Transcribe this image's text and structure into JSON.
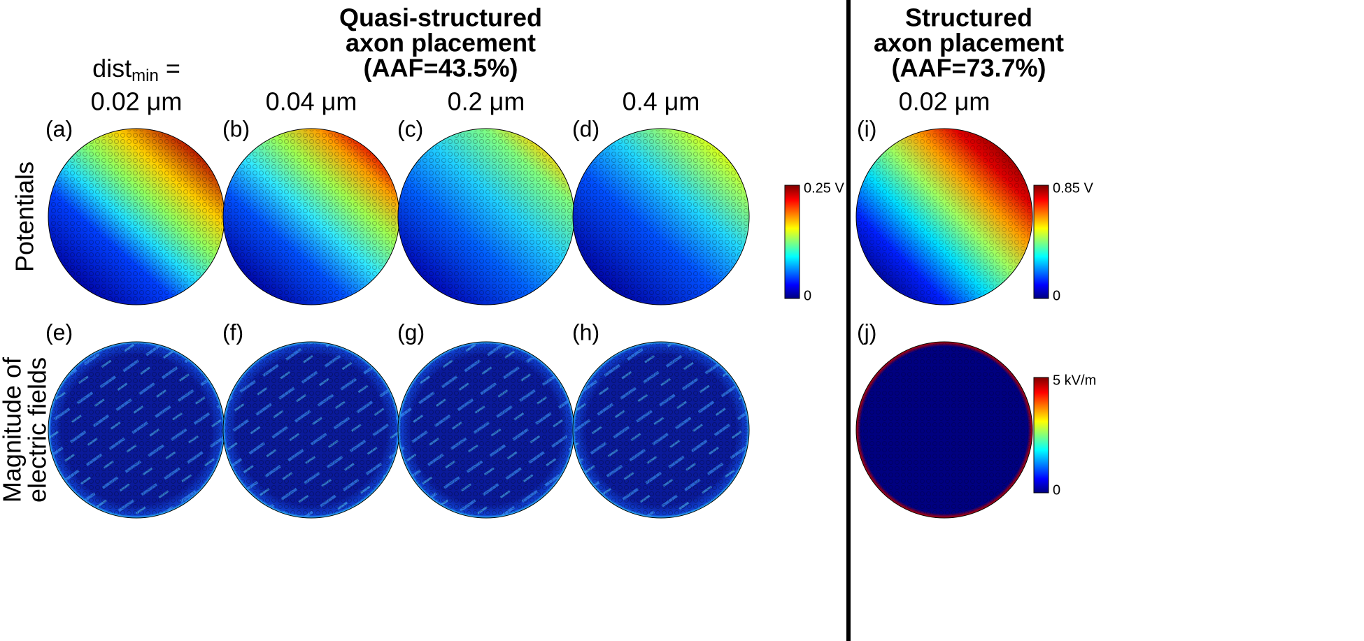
{
  "quasi_title": [
    "Quasi-structured",
    "axon placement",
    "(AAF=43.5%)"
  ],
  "structured_title": [
    "Structured",
    "axon placement",
    "(AAF=73.7%)"
  ],
  "dist_label": {
    "name": "dist",
    "sub": "min",
    "eq": " ="
  },
  "columns": [
    "0.02 μm",
    "0.04 μm",
    "0.2 μm",
    "0.4 μm",
    "0.02 μm"
  ],
  "panels": [
    [
      "(a)",
      "(b)",
      "(c)",
      "(d)",
      "(i)"
    ],
    [
      "(e)",
      "(f)",
      "(g)",
      "(h)",
      "(j)"
    ]
  ],
  "row_labels": [
    [
      "Potentials"
    ],
    [
      "Magnitude of",
      "electric fields"
    ]
  ],
  "colorbars": [
    {
      "max": "0.25 V",
      "min": "0"
    },
    {
      "max": "0.85 V",
      "min": "0"
    },
    {
      "max": "5 kV/m",
      "min": "0"
    }
  ]
}
